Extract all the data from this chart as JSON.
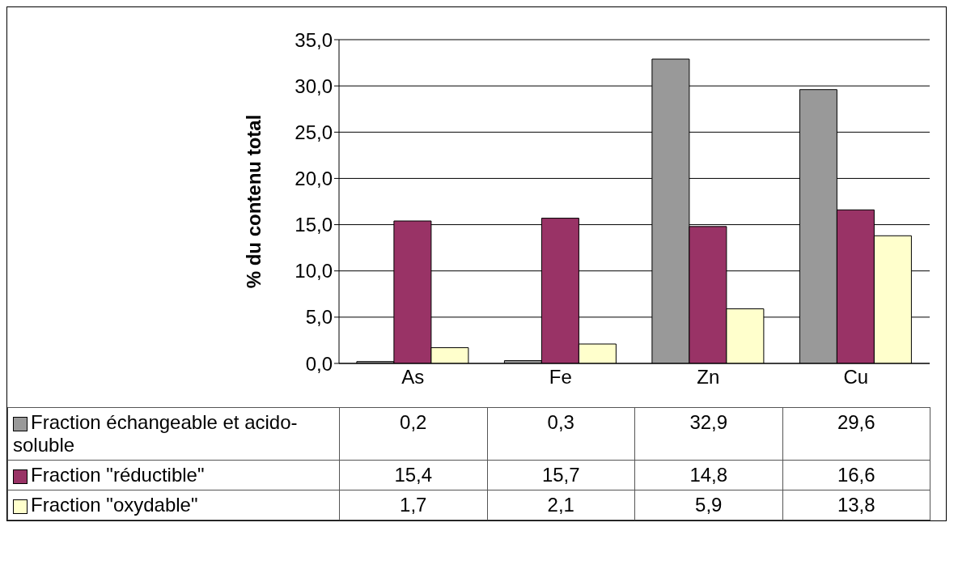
{
  "chart_data": {
    "type": "bar",
    "ylabel": "% du contenu total",
    "categories": [
      "As",
      "Fe",
      "Zn",
      "Cu"
    ],
    "series": [
      {
        "name": "Fraction échangeable et acido-soluble",
        "color": "#999999",
        "values": [
          0.2,
          0.3,
          32.9,
          29.6
        ],
        "value_labels": [
          "0,2",
          "0,3",
          "32,9",
          "29,6"
        ]
      },
      {
        "name": "Fraction \"réductible\"",
        "color": "#993366",
        "values": [
          15.4,
          15.7,
          14.8,
          16.6
        ],
        "value_labels": [
          "15,4",
          "15,7",
          "14,8",
          "16,6"
        ]
      },
      {
        "name": "Fraction \"oxydable\"",
        "color": "#ffffcc",
        "values": [
          1.7,
          2.1,
          5.9,
          13.8
        ],
        "value_labels": [
          "1,7",
          "2,1",
          "5,9",
          "13,8"
        ]
      }
    ],
    "ylim": [
      0,
      35
    ],
    "yticks": [
      {
        "value": 0,
        "label": "0,0"
      },
      {
        "value": 5,
        "label": "5,0"
      },
      {
        "value": 10,
        "label": "10,0"
      },
      {
        "value": 15,
        "label": "15,0"
      },
      {
        "value": 20,
        "label": "20,0"
      },
      {
        "value": 25,
        "label": "25,0"
      },
      {
        "value": 30,
        "label": "30,0"
      },
      {
        "value": 35,
        "label": "35,0"
      }
    ],
    "grid": "y",
    "legend": "bottom"
  }
}
